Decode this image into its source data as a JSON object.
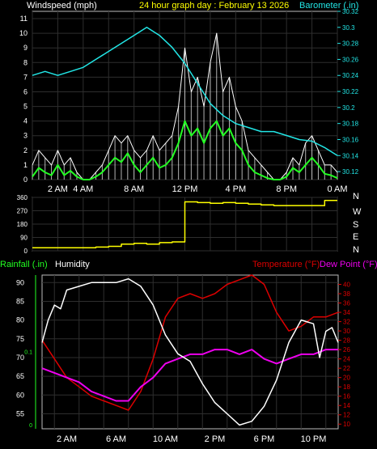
{
  "header": {
    "windspeed_label": "Windspeed (mph)",
    "title": "24 hour graph day : February 13 2026",
    "barometer_label": "Barometer (.in)"
  },
  "panel2": {
    "direction_labels": [
      "N",
      "W",
      "S",
      "E",
      "N"
    ]
  },
  "panel3": {
    "rainfall_label": "Rainfall (.in)",
    "humidity_label": "Humidity",
    "temperature_label": "Temperature (°F)",
    "dewpoint_label": "Dew Point (°F)"
  },
  "colors": {
    "wind_gust": "#ffffff",
    "wind_avg": "#22ff22",
    "barometer": "#22e6e6",
    "direction": "#ffff00",
    "humidity": "#ffffff",
    "temperature": "#dd0000",
    "dewpoint": "#ee00ee",
    "rain_axis": "#22ff22",
    "grid": "#2e2e2e"
  },
  "chart_data": [
    {
      "type": "line",
      "title": "24 hour graph day : February 13 2026",
      "ylabel": "Windspeed (mph)",
      "ylabel_right": "Barometer (.in)",
      "x_ticks": [
        "2 AM",
        "4 AM",
        "8 AM",
        "12 PM",
        "4 PM",
        "8 PM",
        "0 AM"
      ],
      "y_ticks": [
        "0",
        "1",
        "2",
        "3",
        "4",
        "5",
        "6",
        "7",
        "8",
        "9",
        "10",
        "11"
      ],
      "y2_ticks": [
        "30.12",
        "30.14",
        "30.16",
        "30.18",
        "30.2",
        "30.22",
        "30.24",
        "30.26",
        "30.28",
        "30.3",
        "30.32"
      ],
      "ylim": [
        0,
        11.5
      ],
      "y2lim": [
        30.11,
        30.32
      ],
      "series": [
        {
          "name": "gust",
          "x": [
            0,
            0.5,
            1,
            1.5,
            2,
            2.5,
            3,
            3.5,
            4,
            4.5,
            5,
            5.5,
            6,
            6.5,
            7,
            7.5,
            8,
            8.5,
            9,
            9.5,
            10,
            10.5,
            11,
            11.5,
            12,
            12.5,
            13,
            13.5,
            14,
            14.5,
            15,
            15.5,
            16,
            16.5,
            17,
            17.5,
            18,
            18.5,
            19,
            19.5,
            20,
            20.5,
            21,
            21.5,
            22,
            22.5,
            23,
            23.5,
            24
          ],
          "values": [
            1,
            2,
            1.5,
            1,
            2,
            1,
            1.5,
            0.5,
            0,
            0,
            0.5,
            1,
            2,
            3,
            2.5,
            3,
            2,
            1.5,
            2,
            3,
            2,
            2.5,
            3,
            5,
            9,
            6,
            7,
            5,
            8,
            10,
            6,
            7,
            5,
            4,
            2,
            1.5,
            1,
            0.5,
            0,
            0,
            0.5,
            1.5,
            1,
            2.5,
            3,
            2,
            1,
            1,
            0.5
          ]
        },
        {
          "name": "average",
          "x": [
            0,
            0.5,
            1,
            1.5,
            2,
            2.5,
            3,
            3.5,
            4,
            4.5,
            5,
            5.5,
            6,
            6.5,
            7,
            7.5,
            8,
            8.5,
            9,
            9.5,
            10,
            10.5,
            11,
            11.5,
            12,
            12.5,
            13,
            13.5,
            14,
            14.5,
            15,
            15.5,
            16,
            16.5,
            17,
            17.5,
            18,
            18.5,
            19,
            19.5,
            20,
            20.5,
            21,
            21.5,
            22,
            22.5,
            23,
            23.5,
            24
          ],
          "values": [
            0.2,
            0.8,
            0.5,
            0.3,
            1,
            0.3,
            0.6,
            0.2,
            0,
            0,
            0.2,
            0.5,
            1,
            1.5,
            1.2,
            1.8,
            1,
            0.5,
            1,
            1.5,
            0.8,
            1,
            1.5,
            2.5,
            4,
            3,
            3.5,
            2.5,
            3.5,
            4,
            3,
            3.5,
            2.5,
            2,
            1,
            0.5,
            0.3,
            0.1,
            0,
            0,
            0.2,
            0.8,
            0.5,
            1,
            1.5,
            1,
            0.4,
            0.3,
            0.1
          ]
        },
        {
          "name": "barometer",
          "axis": "right",
          "x": [
            0,
            1,
            2,
            3,
            4,
            5,
            6,
            7,
            8,
            9,
            10,
            11,
            12,
            13,
            14,
            15,
            16,
            17,
            18,
            19,
            20,
            21,
            22,
            23,
            24
          ],
          "values": [
            30.24,
            30.245,
            30.24,
            30.245,
            30.25,
            30.26,
            30.27,
            30.28,
            30.29,
            30.3,
            30.29,
            30.275,
            30.255,
            30.23,
            30.205,
            30.19,
            30.18,
            30.175,
            30.17,
            30.17,
            30.165,
            30.16,
            30.158,
            30.15,
            30.14
          ]
        }
      ]
    },
    {
      "type": "line",
      "y_ticks": [
        "0",
        "90",
        "180",
        "270",
        "360"
      ],
      "ylim": [
        0,
        360
      ],
      "series": [
        {
          "name": "direction",
          "x": [
            0,
            2,
            4,
            5,
            6,
            7,
            8,
            9,
            10,
            11,
            12,
            13,
            14,
            15,
            16,
            17,
            18,
            19,
            20,
            21,
            22,
            23,
            24
          ],
          "values": [
            20,
            20,
            20,
            25,
            30,
            45,
            50,
            45,
            55,
            60,
            330,
            325,
            320,
            325,
            320,
            315,
            310,
            305,
            305,
            305,
            305,
            340,
            340
          ]
        }
      ]
    },
    {
      "type": "line",
      "x_ticks": [
        "2 AM",
        "6 AM",
        "10 AM",
        "2 PM",
        "6 PM",
        "10 PM"
      ],
      "y_ticks": [
        "55",
        "60",
        "65",
        "70",
        "75",
        "80",
        "85",
        "90"
      ],
      "y2_ticks": [
        "10",
        "12",
        "14",
        "16",
        "18",
        "20",
        "22",
        "24",
        "26",
        "28",
        "30",
        "32",
        "34",
        "36",
        "38",
        "40"
      ],
      "ylim": [
        51,
        92
      ],
      "y2lim": [
        9,
        42
      ],
      "series": [
        {
          "name": "humidity",
          "x": [
            0,
            0.5,
            1,
            1.5,
            2,
            3,
            4,
            5,
            6,
            7,
            8,
            9,
            10,
            11,
            12,
            13,
            14,
            15,
            16,
            17,
            18,
            19,
            20,
            21,
            22,
            22.5,
            23,
            23.5,
            24
          ],
          "values": [
            74,
            80,
            84,
            83,
            88,
            89,
            90,
            90,
            90,
            91,
            89,
            84,
            76,
            71,
            69,
            63,
            58,
            55,
            52,
            53,
            57,
            64,
            74,
            80,
            79,
            70,
            77,
            78,
            74
          ]
        },
        {
          "name": "temperature",
          "axis": "right",
          "x": [
            0,
            1,
            2,
            3,
            4,
            5,
            6,
            7,
            8,
            9,
            10,
            11,
            12,
            13,
            14,
            15,
            16,
            17,
            18,
            19,
            20,
            21,
            22,
            23,
            24
          ],
          "values": [
            28,
            24,
            20,
            18,
            16,
            15,
            14,
            13,
            17,
            24,
            33,
            37,
            38,
            37,
            38,
            40,
            41,
            42,
            40,
            34,
            30,
            31,
            33,
            33,
            34
          ]
        },
        {
          "name": "dewpoint",
          "axis": "right",
          "x": [
            0,
            1,
            2,
            3,
            4,
            5,
            6,
            7,
            8,
            9,
            10,
            11,
            12,
            13,
            14,
            15,
            16,
            17,
            18,
            19,
            20,
            21,
            22,
            23,
            24
          ],
          "values": [
            22,
            21,
            20,
            19,
            17,
            16,
            15,
            15,
            18,
            20,
            23,
            24,
            25,
            25,
            26,
            26,
            25,
            26,
            24,
            23,
            24,
            25,
            25,
            26,
            26
          ]
        }
      ]
    }
  ]
}
